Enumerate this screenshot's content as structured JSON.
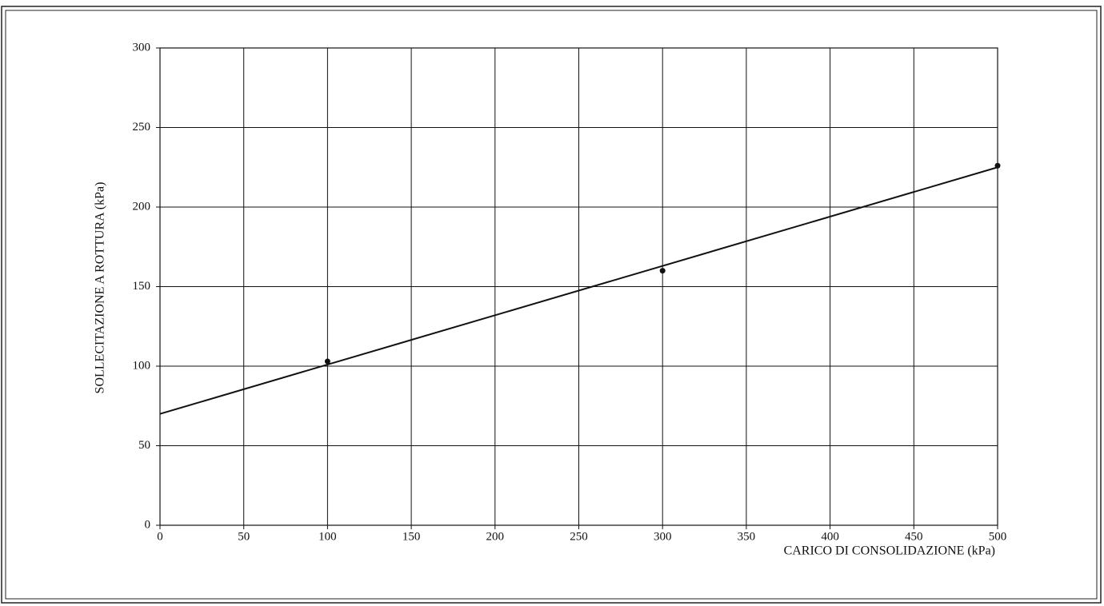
{
  "chart_data": {
    "type": "scatter",
    "xlabel": "CARICO DI CONSOLIDAZIONE (kPa)",
    "ylabel": "SOLLECITAZIONE A ROTTURA (kPa)",
    "series": [
      {
        "color": "#111111",
        "x": [
          100,
          300,
          500
        ],
        "values": [
          103,
          160,
          226
        ]
      }
    ],
    "trendline": {
      "color": "#111111",
      "x": [
        0,
        500
      ],
      "values": [
        70,
        225
      ]
    },
    "xlim": [
      0,
      500
    ],
    "xticks": [
      0,
      50,
      100,
      150,
      200,
      250,
      300,
      350,
      400,
      450,
      500
    ],
    "ylim": [
      0,
      300
    ],
    "yticks": [
      0,
      50,
      100,
      150,
      200,
      250,
      300
    ],
    "grid": true
  }
}
